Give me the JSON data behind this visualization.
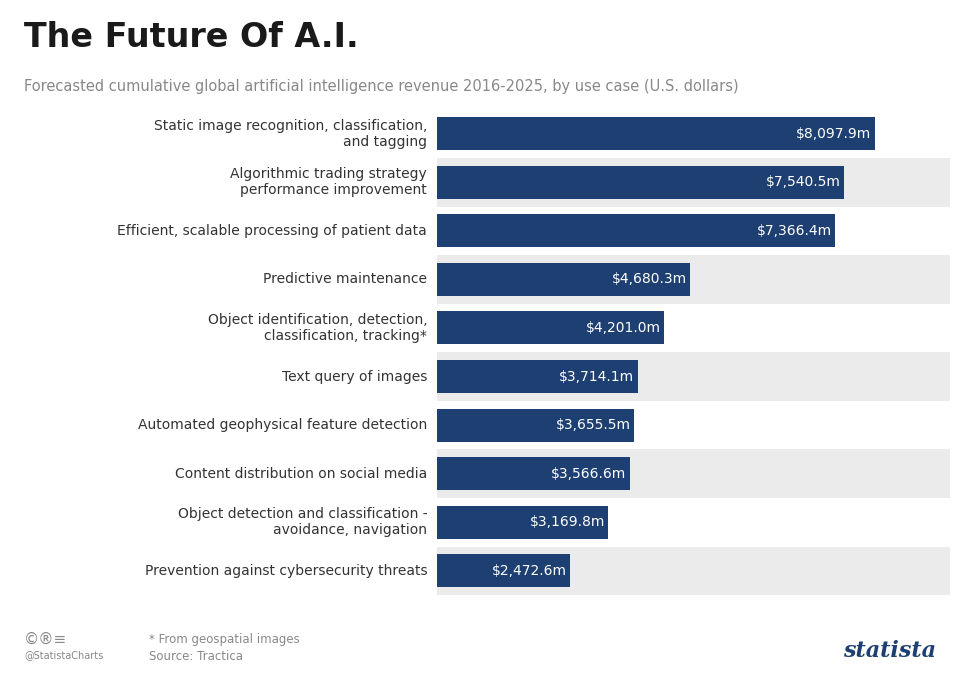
{
  "title": "The Future Of A.I.",
  "subtitle": "Forecasted cumulative global artificial intelligence revenue 2016-2025, by use case (U.S. dollars)",
  "categories": [
    "Static image recognition, classification,\nand tagging",
    "Algorithmic trading strategy\nperformance improvement",
    "Efficient, scalable processing of patient data",
    "Predictive maintenance",
    "Object identification, detection,\nclassification, tracking*",
    "Text query of images",
    "Automated geophysical feature detection",
    "Content distribution on social media",
    "Object detection and classification -\navoidance, navigation",
    "Prevention against cybersecurity threats"
  ],
  "values": [
    8097.9,
    7540.5,
    7366.4,
    4680.3,
    4201.0,
    3714.1,
    3655.5,
    3566.6,
    3169.8,
    2472.6
  ],
  "labels": [
    "$8,097.9m",
    "$7,540.5m",
    "$7,366.4m",
    "$4,680.3m",
    "$4,201.0m",
    "$3,714.1m",
    "$3,655.5m",
    "$3,566.6m",
    "$3,169.8m",
    "$2,472.6m"
  ],
  "bar_color": "#1e3f72",
  "label_color": "#ffffff",
  "bg_color": "#ffffff",
  "row_colors": [
    "#ffffff",
    "#ebebeb"
  ],
  "title_color": "#1a1a1a",
  "subtitle_color": "#888888",
  "cat_color": "#333333",
  "footnote_color": "#888888",
  "max_value": 9500,
  "title_fontsize": 24,
  "subtitle_fontsize": 10.5,
  "label_fontsize": 10,
  "cat_fontsize": 10,
  "bar_height": 0.68
}
